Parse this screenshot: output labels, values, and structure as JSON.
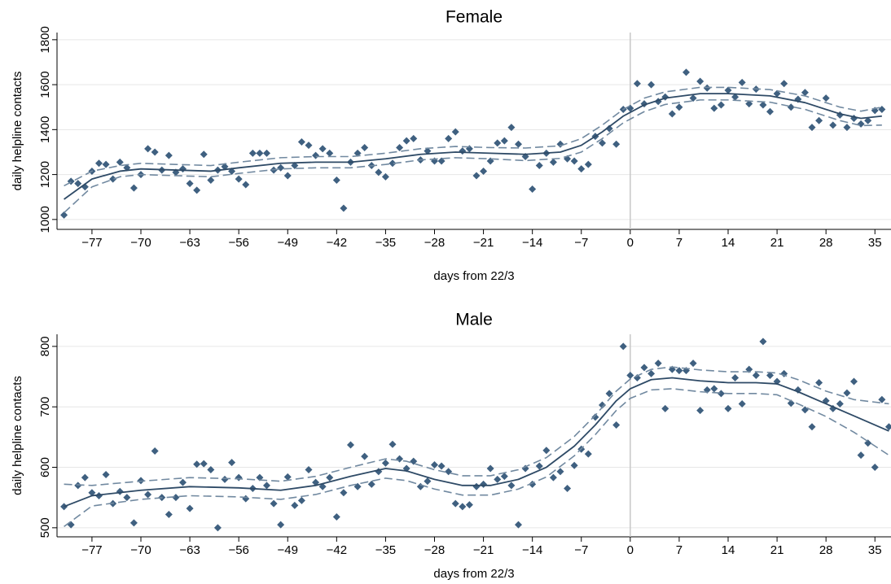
{
  "chart_data": [
    {
      "type": "scatter",
      "title": "Female",
      "xlabel": "days from 22/3",
      "ylabel": "daily helpline contacts",
      "xlim": [
        -82,
        37.3
      ],
      "ylim": [
        956,
        1832
      ],
      "xticks": [
        {
          "value": -77,
          "label": "−77"
        },
        {
          "value": -70,
          "label": "−70"
        },
        {
          "value": -63,
          "label": "−63"
        },
        {
          "value": -56,
          "label": "−56"
        },
        {
          "value": -49,
          "label": "−49"
        },
        {
          "value": -42,
          "label": "−42"
        },
        {
          "value": -35,
          "label": "−35"
        },
        {
          "value": -28,
          "label": "−28"
        },
        {
          "value": -21,
          "label": "−21"
        },
        {
          "value": -14,
          "label": "−14"
        },
        {
          "value": -7,
          "label": "−7"
        },
        0,
        7,
        14,
        21,
        28,
        35
      ],
      "yticks": [
        1000,
        1200,
        1400,
        1600,
        1800
      ],
      "grid": true,
      "vline": 0,
      "points": {
        "color": "#3f6080",
        "x": [
          -81,
          -80,
          -79,
          -78,
          -77,
          -76,
          -75,
          -74,
          -73,
          -72,
          -71,
          -70,
          -69,
          -68,
          -67,
          -66,
          -65,
          -64,
          -63,
          -62,
          -61,
          -60,
          -59,
          -58,
          -57,
          -56,
          -55,
          -54,
          -53,
          -52,
          -51,
          -50,
          -49,
          -48,
          -47,
          -46,
          -45,
          -44,
          -43,
          -42,
          -41,
          -40,
          -39,
          -38,
          -37,
          -36,
          -35,
          -34,
          -33,
          -32,
          -31,
          -30,
          -29,
          -28,
          -27,
          -26,
          -25,
          -24,
          -23,
          -22,
          -21,
          -20,
          -19,
          -18,
          -17,
          -16,
          -15,
          -14,
          -13,
          -12,
          -11,
          -10,
          -9,
          -8,
          -7,
          -6,
          -5,
          -4,
          -3,
          -2,
          -1,
          0,
          1,
          2,
          3,
          4,
          5,
          6,
          7,
          8,
          9,
          10,
          11,
          12,
          13,
          14,
          15,
          16,
          17,
          18,
          19,
          20,
          21,
          22,
          23,
          24,
          25,
          26,
          27,
          28,
          29,
          30,
          31,
          32,
          33,
          34,
          35,
          36
        ],
        "values": [
          1020,
          1170,
          1160,
          1145,
          1215,
          1250,
          1245,
          1180,
          1255,
          1230,
          1140,
          1200,
          1315,
          1300,
          1220,
          1285,
          1210,
          1225,
          1160,
          1130,
          1290,
          1175,
          1220,
          1235,
          1215,
          1180,
          1155,
          1295,
          1295,
          1295,
          1220,
          1230,
          1195,
          1240,
          1345,
          1330,
          1285,
          1315,
          1295,
          1175,
          1050,
          1255,
          1295,
          1320,
          1240,
          1210,
          1190,
          1250,
          1320,
          1350,
          1360,
          1265,
          1305,
          1260,
          1260,
          1360,
          1390,
          1305,
          1315,
          1195,
          1215,
          1260,
          1340,
          1350,
          1410,
          1335,
          1280,
          1135,
          1240,
          1295,
          1255,
          1335,
          1270,
          1260,
          1225,
          1245,
          1370,
          1340,
          1405,
          1335,
          1490,
          1495,
          1605,
          1515,
          1600,
          1525,
          1545,
          1470,
          1500,
          1655,
          1540,
          1615,
          1585,
          1495,
          1510,
          1575,
          1545,
          1610,
          1515,
          1580,
          1510,
          1480,
          1560,
          1605,
          1500,
          1535,
          1565,
          1410,
          1440,
          1540,
          1420,
          1465,
          1410,
          1450,
          1425,
          1440,
          1485,
          1490
        ]
      },
      "fit": {
        "color": "#2e4a66",
        "ci_color": "#7189a0",
        "x": [
          -81,
          -77,
          -73,
          -70,
          -65,
          -60,
          -56,
          -50,
          -45,
          -40,
          -35,
          -30,
          -25,
          -20,
          -15,
          -10,
          -7,
          -4,
          -1,
          2,
          5,
          10,
          14,
          20,
          25,
          30,
          33,
          36
        ],
        "values": [
          1090,
          1180,
          1215,
          1225,
          1220,
          1215,
          1230,
          1250,
          1255,
          1255,
          1270,
          1290,
          1300,
          1295,
          1290,
          1300,
          1330,
          1390,
          1460,
          1510,
          1540,
          1560,
          1560,
          1550,
          1520,
          1470,
          1450,
          1460
        ],
        "upper": [
          1150,
          1215,
          1240,
          1250,
          1245,
          1240,
          1255,
          1275,
          1280,
          1280,
          1295,
          1315,
          1325,
          1320,
          1318,
          1328,
          1360,
          1420,
          1490,
          1540,
          1568,
          1588,
          1588,
          1578,
          1550,
          1500,
          1482,
          1500
        ],
        "lower": [
          1030,
          1145,
          1190,
          1200,
          1195,
          1190,
          1205,
          1225,
          1230,
          1230,
          1245,
          1265,
          1275,
          1270,
          1262,
          1272,
          1300,
          1360,
          1430,
          1480,
          1512,
          1532,
          1532,
          1522,
          1490,
          1440,
          1418,
          1420
        ]
      }
    },
    {
      "type": "scatter",
      "title": "Male",
      "xlabel": "days from 22/3",
      "ylabel": "daily helpline contacts",
      "xlim": [
        -82,
        37.3
      ],
      "ylim": [
        485,
        820
      ],
      "xticks": [
        {
          "value": -77,
          "label": "−77"
        },
        {
          "value": -70,
          "label": "−70"
        },
        {
          "value": -63,
          "label": "−63"
        },
        {
          "value": -56,
          "label": "−56"
        },
        {
          "value": -49,
          "label": "−49"
        },
        {
          "value": -42,
          "label": "−42"
        },
        {
          "value": -35,
          "label": "−35"
        },
        {
          "value": -28,
          "label": "−28"
        },
        {
          "value": -21,
          "label": "−21"
        },
        {
          "value": -14,
          "label": "−14"
        },
        {
          "value": -7,
          "label": "−7"
        },
        0,
        7,
        14,
        21,
        28,
        35
      ],
      "yticks": [
        500,
        600,
        700,
        800
      ],
      "grid": true,
      "vline": 0,
      "points": {
        "color": "#3f6080",
        "x": [
          -81,
          -80,
          -79,
          -78,
          -77,
          -76,
          -75,
          -74,
          -73,
          -72,
          -71,
          -70,
          -69,
          -68,
          -67,
          -66,
          -65,
          -64,
          -63,
          -62,
          -61,
          -60,
          -59,
          -58,
          -57,
          -56,
          -55,
          -54,
          -53,
          -52,
          -51,
          -50,
          -49,
          -48,
          -47,
          -46,
          -45,
          -44,
          -43,
          -42,
          -41,
          -40,
          -39,
          -38,
          -37,
          -36,
          -35,
          -34,
          -33,
          -32,
          -31,
          -30,
          -29,
          -28,
          -27,
          -26,
          -25,
          -24,
          -23,
          -22,
          -21,
          -20,
          -19,
          -18,
          -17,
          -16,
          -15,
          -14,
          -13,
          -12,
          -11,
          -10,
          -9,
          -8,
          -7,
          -6,
          -5,
          -4,
          -3,
          -2,
          -1,
          0,
          1,
          2,
          3,
          4,
          5,
          6,
          7,
          8,
          9,
          10,
          11,
          12,
          13,
          14,
          15,
          16,
          17,
          18,
          19,
          20,
          21,
          22,
          23,
          24,
          25,
          26,
          27,
          28,
          29,
          30,
          31,
          32,
          33,
          34,
          35,
          36,
          37
        ],
        "values": [
          535,
          505,
          570,
          583,
          558,
          553,
          588,
          540,
          560,
          550,
          508,
          578,
          555,
          627,
          550,
          522,
          550,
          575,
          532,
          605,
          606,
          596,
          500,
          580,
          608,
          583,
          548,
          565,
          583,
          570,
          540,
          505,
          584,
          537,
          545,
          596,
          575,
          568,
          583,
          518,
          558,
          637,
          568,
          618,
          572,
          593,
          607,
          638,
          614,
          598,
          610,
          568,
          577,
          604,
          602,
          593,
          540,
          535,
          538,
          568,
          572,
          598,
          580,
          585,
          570,
          505,
          598,
          572,
          602,
          628,
          583,
          593,
          565,
          603,
          630,
          622,
          683,
          703,
          722,
          670,
          800,
          752,
          748,
          765,
          755,
          772,
          697,
          762,
          760,
          760,
          772,
          694,
          728,
          730,
          722,
          697,
          748,
          705,
          762,
          752,
          808,
          752,
          742,
          755,
          706,
          728,
          695,
          667,
          740,
          710,
          697,
          705,
          723,
          742,
          620,
          640,
          600,
          712,
          667
        ]
      },
      "fit": {
        "color": "#2e4a66",
        "ci_color": "#7189a0",
        "x": [
          -81,
          -77,
          -70,
          -63,
          -56,
          -50,
          -45,
          -40,
          -35,
          -32,
          -28,
          -24,
          -20,
          -16,
          -12,
          -8,
          -5,
          -2,
          0,
          3,
          6,
          10,
          14,
          18,
          21,
          24,
          28,
          32,
          37
        ],
        "values": [
          535,
          553,
          562,
          568,
          566,
          562,
          570,
          585,
          598,
          594,
          580,
          570,
          570,
          580,
          600,
          635,
          670,
          710,
          730,
          745,
          748,
          743,
          740,
          740,
          738,
          725,
          705,
          685,
          660
        ],
        "upper": [
          572,
          570,
          577,
          583,
          581,
          577,
          585,
          600,
          614,
          610,
          596,
          586,
          586,
          596,
          616,
          651,
          686,
          726,
          746,
          762,
          766,
          761,
          758,
          758,
          756,
          745,
          726,
          712,
          705
        ],
        "lower": [
          502,
          536,
          547,
          553,
          551,
          547,
          555,
          570,
          582,
          578,
          564,
          554,
          554,
          564,
          584,
          619,
          654,
          694,
          714,
          728,
          730,
          725,
          722,
          722,
          720,
          705,
          684,
          658,
          620
        ]
      }
    }
  ]
}
